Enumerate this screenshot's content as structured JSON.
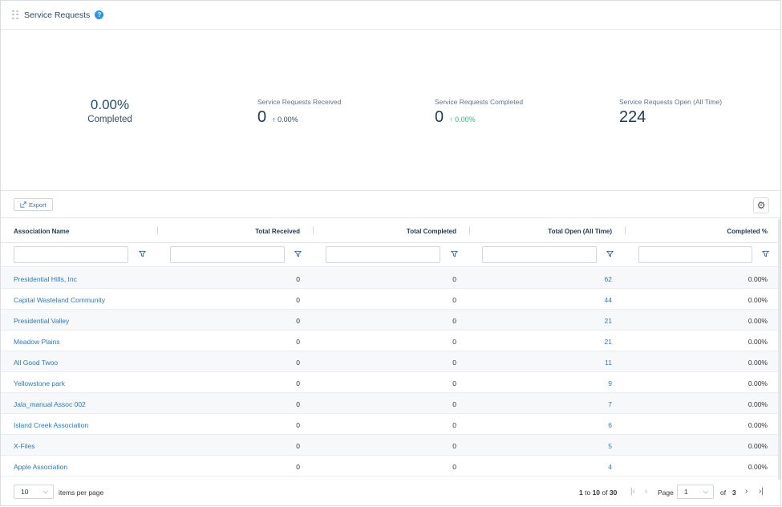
{
  "header": {
    "title": "Service Requests",
    "help": "?"
  },
  "kpi_completed": {
    "value": "0.00%",
    "label": "Completed"
  },
  "kpi_received": {
    "label": "Service Requests Received",
    "value": "0",
    "delta": "↑ 0.00%"
  },
  "kpi_done": {
    "label": "Service Requests Completed",
    "value": "0",
    "delta": "↑ 0.00%"
  },
  "kpi_open": {
    "label": "Service Requests Open (All Time)",
    "value": "224"
  },
  "toolbar": {
    "export_label": "Export"
  },
  "columns": [
    "Association Name",
    "Total Received",
    "Total Completed",
    "Total Open (All Time)",
    "Completed %"
  ],
  "rows": [
    [
      "Presidential Hills, Inc",
      "0",
      "0",
      "62",
      "0.00%"
    ],
    [
      "Capital Wasteland Community",
      "0",
      "0",
      "44",
      "0.00%"
    ],
    [
      "Presidential Valley",
      "0",
      "0",
      "21",
      "0.00%"
    ],
    [
      "Meadow Plains",
      "0",
      "0",
      "21",
      "0.00%"
    ],
    [
      "All Good Twoo",
      "0",
      "0",
      "11",
      "0.00%"
    ],
    [
      "Yellowstone park",
      "0",
      "0",
      "9",
      "0.00%"
    ],
    [
      "Jala_manual Assoc 002",
      "0",
      "0",
      "7",
      "0.00%"
    ],
    [
      "Island Creek Association",
      "0",
      "0",
      "6",
      "0.00%"
    ],
    [
      "X-Files",
      "0",
      "0",
      "5",
      "0.00%"
    ],
    [
      "Apple Association",
      "0",
      "0",
      "4",
      "0.00%"
    ]
  ],
  "pager": {
    "page_size": "10",
    "items_per_page": "items per page",
    "range_from": "1",
    "range_to_word": "to",
    "range_to": "10",
    "of_word": "of",
    "total": "30",
    "page_label": "Page",
    "page_value": "1",
    "page_of": "of",
    "page_total": "3"
  },
  "colors": {
    "accent": "#2a7bbf",
    "positive": "#2ec27e",
    "text": "#1f3a56"
  }
}
